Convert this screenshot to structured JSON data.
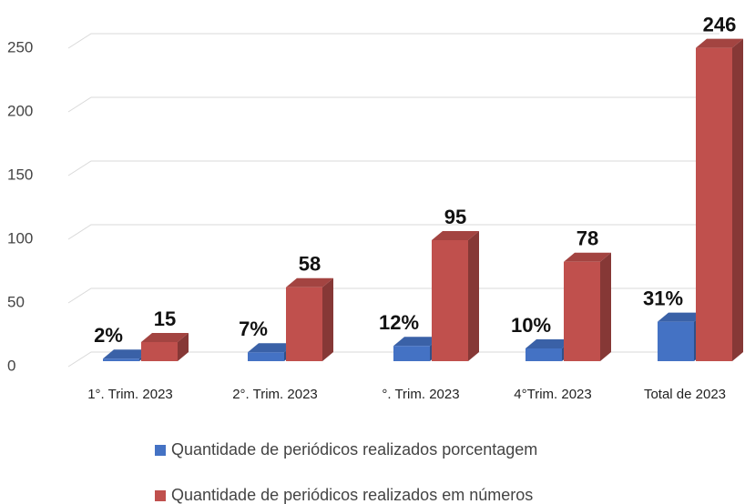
{
  "chart_data": {
    "type": "bar3d",
    "categories": [
      "1°. Trim. 2023",
      "2°. Trim. 2023",
      "°. Trim. 2023",
      "4°Trim. 2023",
      "Total de 2023"
    ],
    "series": [
      {
        "name": "Quantidade de periódicos realizados porcentagem",
        "color": "#4472c4",
        "values": [
          2,
          7,
          12,
          10,
          31
        ],
        "value_labels": [
          "2%",
          "7%",
          "12%",
          "10%",
          "31%"
        ]
      },
      {
        "name": "Quantidade de periódicos realizados em números",
        "color": "#c0504d",
        "values": [
          15,
          58,
          95,
          78,
          246
        ]
      }
    ],
    "ylim": [
      0,
      250
    ],
    "yticks": [
      0,
      50,
      100,
      150,
      200,
      250
    ],
    "grid": true
  }
}
